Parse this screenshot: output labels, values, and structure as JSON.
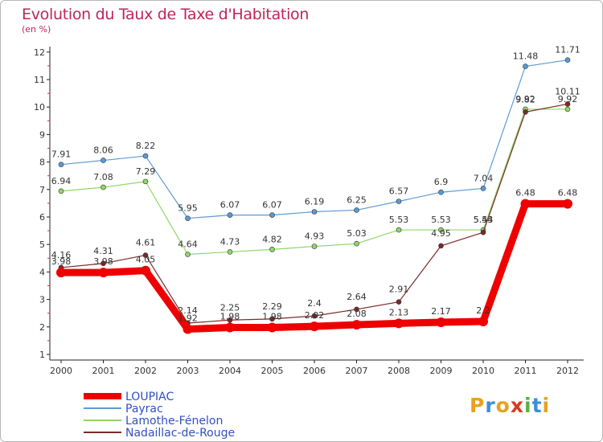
{
  "header": {
    "title": "Evolution du Taux de Taxe d'Habitation",
    "subtitle": "(en %)"
  },
  "brand": {
    "letters": [
      "P",
      "r",
      "o",
      "x",
      "i",
      "t",
      "i"
    ],
    "colors": [
      "#e8a020",
      "#3a8fd8",
      "#e8a020",
      "#d83a20",
      "#5ab040",
      "#3a8fd8",
      "#e8a020"
    ]
  },
  "chart_data": {
    "type": "line",
    "title": "Evolution du Taux de Taxe d'Habitation",
    "ylabel": "(en %)",
    "xlabel": "",
    "ylim": [
      1,
      12
    ],
    "yticks": [
      1,
      2,
      3,
      4,
      5,
      6,
      7,
      8,
      9,
      10,
      11,
      12
    ],
    "grid": false,
    "legend_position": "bottom-left",
    "x": [
      "2000",
      "2001",
      "2002",
      "2003",
      "2004",
      "2005",
      "2006",
      "2007",
      "2008",
      "2009",
      "2010",
      "2011",
      "2012"
    ],
    "series": [
      {
        "name": "Payrac",
        "color": "#5b9bd5",
        "values": [
          7.91,
          8.06,
          8.22,
          5.95,
          6.07,
          6.07,
          6.19,
          6.25,
          6.57,
          6.9,
          7.04,
          11.48,
          11.71
        ]
      },
      {
        "name": "Lamothe-Fénelon",
        "color": "#8fd864",
        "values": [
          6.94,
          7.08,
          7.29,
          4.64,
          4.73,
          4.82,
          4.93,
          5.03,
          5.53,
          5.53,
          5.53,
          9.92,
          9.92
        ]
      },
      {
        "name": "Nadaillac-de-Rouge",
        "color": "#7a2a2a",
        "values": [
          4.16,
          4.31,
          4.61,
          2.14,
          2.25,
          2.29,
          2.4,
          2.64,
          2.91,
          4.95,
          5.44,
          9.82,
          10.11
        ]
      },
      {
        "name": "LOUPIAC",
        "color": "#ee0000",
        "values": [
          3.98,
          3.98,
          4.05,
          1.92,
          1.98,
          1.98,
          2.02,
          2.08,
          2.13,
          2.17,
          2.2,
          6.48,
          6.48
        ]
      }
    ],
    "legend": [
      "LOUPIAC",
      "Payrac",
      "Lamothe-Fénelon",
      "Nadaillac-de-Rouge"
    ]
  }
}
